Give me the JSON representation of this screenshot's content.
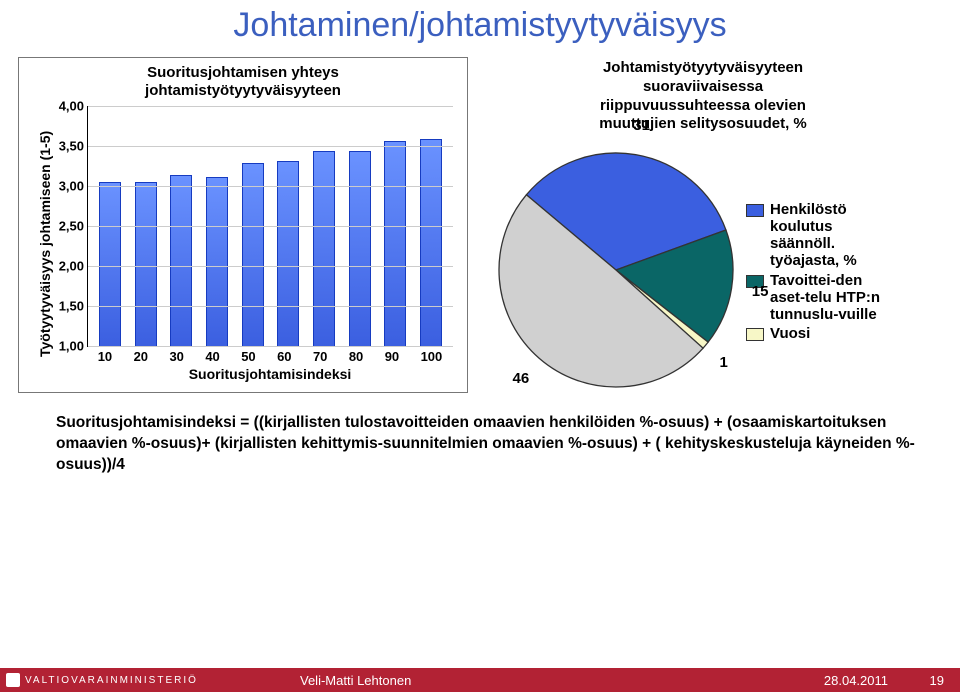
{
  "title": "Johtaminen/johtamistyytyväisyys",
  "bar_chart": {
    "type": "bar",
    "subtitle_l1": "Suoritusjohtamisen yhteys",
    "subtitle_l2": "johtamistyötyytyväisyyteen",
    "y_label": "Työtyytyväisyys johtamiseen (1-5)",
    "x_label": "Suoritusjohtamisindeksi",
    "ymin": 1.0,
    "ymax": 4.0,
    "yticks": [
      "1,00",
      "1,50",
      "2,00",
      "2,50",
      "3,00",
      "3,50",
      "4,00"
    ],
    "xticks": [
      "10",
      "20",
      "30",
      "40",
      "50",
      "60",
      "70",
      "80",
      "90",
      "100"
    ],
    "values": [
      3.04,
      3.04,
      3.12,
      3.1,
      3.28,
      3.3,
      3.42,
      3.42,
      3.55,
      3.58
    ],
    "bar_color_top": "#6a92ff",
    "bar_color_bottom": "#3b5fe0",
    "bar_border": "#163bc0",
    "grid_color": "#cccccc"
  },
  "pie": {
    "type": "pie",
    "subtitle_l1": "Johtamistyötyytyväisyyteen",
    "subtitle_l2": "suoraviivaisessa",
    "subtitle_l3": "riippuvuussuhteessa olevien",
    "subtitle_l4": "muuttujien selitysosuudet, %",
    "slices": [
      {
        "label": "31",
        "value": 31,
        "color": "#3b5fe0"
      },
      {
        "label": "15",
        "value": 15,
        "color": "#0a6666"
      },
      {
        "label": "1",
        "value": 1,
        "color": "#f7f7c7"
      },
      {
        "label": "46",
        "value": 46,
        "color": "#d0d0d0"
      }
    ],
    "legend": [
      {
        "color": "#3b5fe0",
        "text": "Henkilöstö koulutus säännöll. työajasta, %"
      },
      {
        "color": "#0a6666",
        "text": "Tavoittei-den aset-telu HTP:n tunnuslu-vuille"
      },
      {
        "color": "#f7f7c7",
        "text": "Vuosi"
      }
    ],
    "border": "#333333"
  },
  "formula": "Suoritusjohtamisindeksi = ((kirjallisten tulostavoitteiden omaavien henkilöiden %-osuus) + (osaamiskartoituksen omaavien %-osuus)+ (kirjallisten kehittymis-suunnitelmien omaavien %-osuus) + ( kehityskeskusteluja käyneiden %-osuus))/4",
  "footer": {
    "ministry": "VALTIOVARAINMINISTERIÖ",
    "author": "Veli-Matti Lehtonen",
    "date": "28.04.2011",
    "page": "19"
  }
}
